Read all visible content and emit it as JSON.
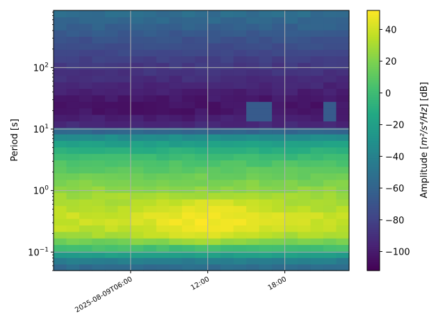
{
  "chart_data": {
    "type": "heatmap",
    "title": "",
    "ylabel": "Period [s]",
    "xlabel": "",
    "y_scale": "log",
    "ylim": [
      0.05,
      850
    ],
    "xlim": [
      "2025-08-09T00:00",
      "2025-08-09T23:00"
    ],
    "x_ticks": [
      {
        "value": "2025-08-09T06:00",
        "label": "2025-08-09T06:00"
      },
      {
        "value": "2025-08-09T12:00",
        "label": "12:00"
      },
      {
        "value": "2025-08-09T18:00",
        "label": "18:00"
      }
    ],
    "y_ticks": [
      {
        "value": 0.1,
        "base": "10",
        "exp": "−1"
      },
      {
        "value": 1,
        "base": "10",
        "exp": "0"
      },
      {
        "value": 10,
        "base": "10",
        "exp": "1"
      },
      {
        "value": 100,
        "base": "10",
        "exp": "2"
      }
    ],
    "grid": true,
    "colormap": "viridis",
    "colorbar": {
      "label_prefix": "Amplitude [",
      "label_math": "m²/s⁴/Hz",
      "label_suffix": "] [dB]",
      "range": [
        -112,
        52
      ],
      "ticks": [
        40,
        20,
        0,
        -20,
        -40,
        -60,
        -80,
        -100
      ],
      "tick_labels": [
        "40",
        "20",
        "0",
        "−20",
        "−40",
        "−60",
        "−80",
        "−100"
      ]
    },
    "time_bins_count": 23,
    "period_bins_count": 40,
    "amplitude_profile_db": {
      "period_s": [
        0.05,
        0.065,
        0.08,
        0.1,
        0.13,
        0.17,
        0.2,
        0.25,
        0.3,
        0.4,
        0.5,
        0.7,
        1.0,
        1.5,
        2,
        3,
        5,
        7,
        9,
        10,
        12,
        15,
        20,
        25,
        30,
        40,
        50,
        70,
        100,
        150,
        200,
        300,
        500,
        850
      ],
      "amplitude_db": [
        -58,
        -50,
        -35,
        -12,
        12,
        28,
        36,
        40,
        42,
        42,
        38,
        32,
        25,
        18,
        12,
        4,
        -12,
        -30,
        -40,
        -85,
        -93,
        -98,
        -103,
        -103,
        -102,
        -98,
        -95,
        -90,
        -86,
        -80,
        -75,
        -70,
        -60,
        -52
      ]
    },
    "daytime_noise_boost_db": 8,
    "highlights": [
      {
        "period_s": [
          12,
          30
        ],
        "time": [
          "2025-08-09T15:00",
          "2025-08-09T16:30"
        ],
        "amplitude_db": -65
      },
      {
        "period_s": [
          12,
          30
        ],
        "time": [
          "2025-08-09T21:00",
          "2025-08-09T22:00"
        ],
        "amplitude_db": -65
      }
    ]
  }
}
